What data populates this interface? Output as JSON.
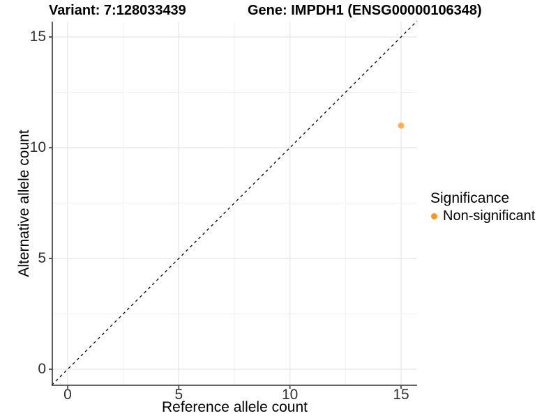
{
  "figure": {
    "title_left": "Variant: 7:128033439",
    "title_right": "Gene: IMPDH1 (ENSG00000106348)"
  },
  "axes": {
    "x_title": "Reference allele count",
    "y_title": "Alternative allele count"
  },
  "legend": {
    "title": "Significance",
    "items": [
      {
        "label": "Non-significant",
        "color": "#F8981C"
      }
    ]
  },
  "chart_data": {
    "type": "scatter",
    "titles": [
      "Variant: 7:128033439",
      "Gene: IMPDH1 (ENSG00000106348)"
    ],
    "xlabel": "Reference allele count",
    "ylabel": "Alternative allele count",
    "xlim": [
      -0.72,
      15.72
    ],
    "ylim": [
      -0.72,
      15.72
    ],
    "x_ticks": [
      0,
      5,
      10,
      15
    ],
    "y_ticks": [
      0,
      5,
      10,
      15
    ],
    "x_minor_ticks": [
      2.5,
      7.5,
      12.5
    ],
    "y_minor_ticks": [
      2.5,
      7.5,
      12.5
    ],
    "grid": true,
    "legend_position": "right",
    "series": [
      {
        "name": "Non-significant",
        "color": "#F8981C",
        "point_alpha": 0.75,
        "points": [
          {
            "x": 15,
            "y": 11
          }
        ]
      }
    ],
    "reference_line": {
      "equation": "y = x",
      "style": "dashed",
      "color": "#000000"
    }
  },
  "colors": {
    "background": "#FFFFFF",
    "axis_line": "#333333",
    "tick_label": "#303030",
    "grid_major": "#E5E5E5",
    "grid_minor": "#F1F1F1",
    "point": "#F8981C"
  }
}
